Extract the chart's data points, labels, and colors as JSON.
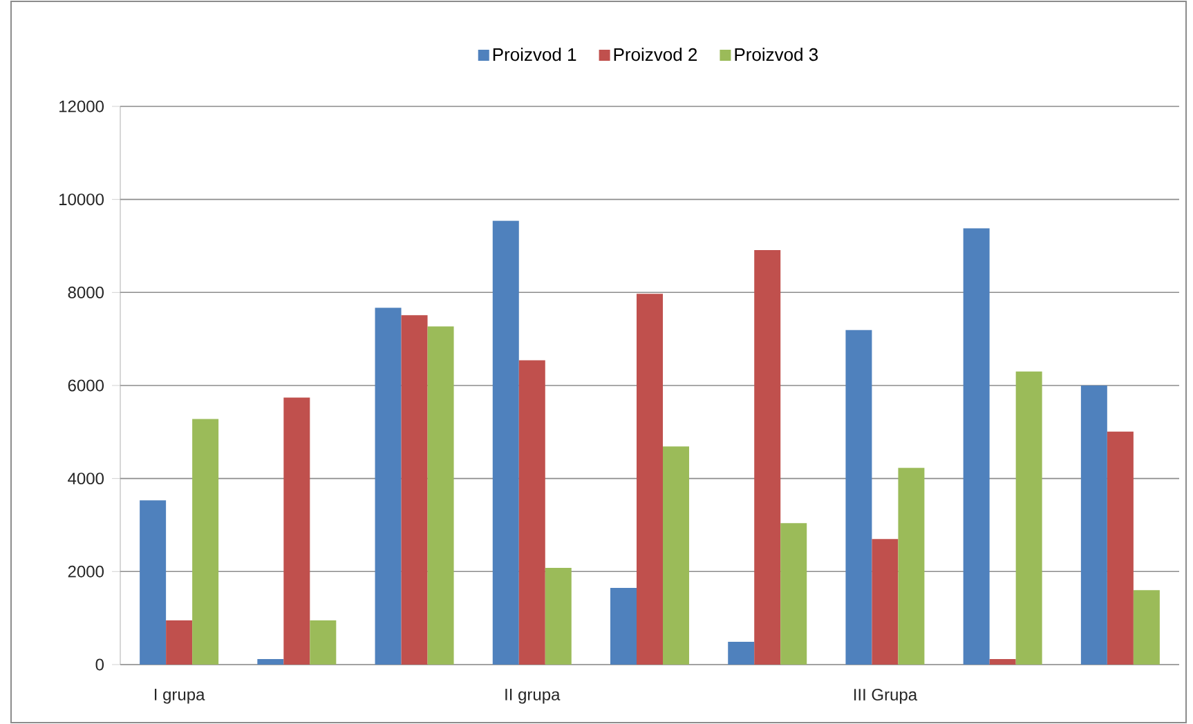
{
  "chart_data": {
    "type": "bar",
    "categories": [
      "I grupa",
      null,
      null,
      "II grupa",
      null,
      null,
      "III Grupa",
      null,
      null
    ],
    "series": [
      {
        "name": "Proizvod 1",
        "color": "#4f81bd",
        "values": [
          3530,
          120,
          7670,
          9540,
          1650,
          490,
          7190,
          9380,
          6000
        ]
      },
      {
        "name": "Proizvod 2",
        "color": "#c0504d",
        "values": [
          950,
          5740,
          7510,
          6540,
          7970,
          8910,
          2700,
          120,
          5010
        ]
      },
      {
        "name": "Proizvod 3",
        "color": "#9bbb59",
        "values": [
          5280,
          950,
          7270,
          2080,
          4690,
          3040,
          4230,
          6300,
          1600
        ]
      }
    ],
    "ylim": [
      0,
      12000
    ],
    "yticks": [
      0,
      2000,
      4000,
      6000,
      8000,
      10000,
      12000
    ],
    "grid": "y",
    "legend": "top"
  }
}
